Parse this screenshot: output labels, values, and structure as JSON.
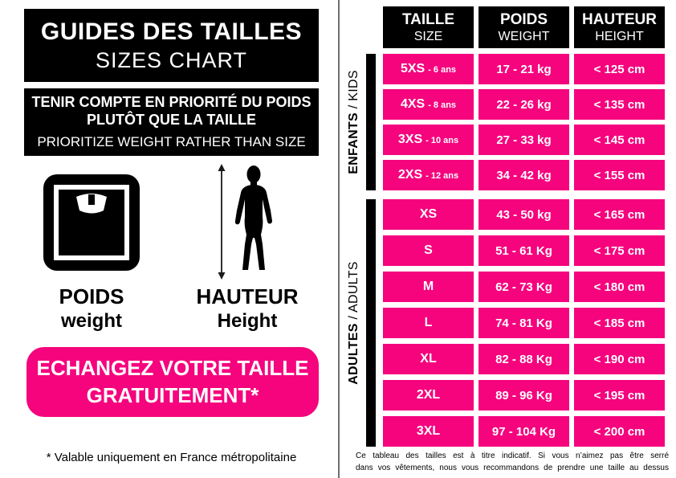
{
  "left_panel": {
    "title": {
      "fr": "GUIDES DES TAILLES",
      "en": "SIZES CHART"
    },
    "notice": {
      "fr_line1": "TENIR COMPTE EN PRIORITÉ DU POIDS",
      "fr_line2": "PLUTÔT QUE LA TAILLE",
      "en": "PRIORITIZE WEIGHT RATHER THAN SIZE"
    },
    "weight_icon_label": {
      "fr": "POIDS",
      "en": "weight"
    },
    "height_icon_label": {
      "fr": "HAUTEUR",
      "en": "Height"
    },
    "exchange_banner": {
      "line1": "ECHANGEZ VOTRE TAILLE",
      "line2": "GRATUITEMENT*"
    },
    "footnote": "* Valable uniquement en France métropolitaine"
  },
  "table": {
    "headers": [
      {
        "fr": "TAILLE",
        "en": "SIZE"
      },
      {
        "fr": "POIDS",
        "en": "WEIGHT"
      },
      {
        "fr": "HAUTEUR",
        "en": "HEIGHT"
      }
    ],
    "groups": [
      {
        "label_fr": "ENFANTS",
        "sep": "/",
        "label_en": "KIDS",
        "rows": [
          {
            "size": "5XS",
            "age": "- 6 ans",
            "weight": "17 - 21 kg",
            "height": "< 125 cm"
          },
          {
            "size": "4XS",
            "age": "- 8 ans",
            "weight": "22 - 26 kg",
            "height": "< 135 cm"
          },
          {
            "size": "3XS",
            "age": "- 10 ans",
            "weight": "27 - 33 kg",
            "height": "< 145 cm"
          },
          {
            "size": "2XS",
            "age": "- 12 ans",
            "weight": "34 - 42 kg",
            "height": "< 155 cm"
          }
        ]
      },
      {
        "label_fr": "ADULTES",
        "sep": "/",
        "label_en": "ADULTS",
        "rows": [
          {
            "size": "XS",
            "age": "",
            "weight": "43 - 50 kg",
            "height": "< 165 cm"
          },
          {
            "size": "S",
            "age": "",
            "weight": "51 - 61 Kg",
            "height": "< 175 cm"
          },
          {
            "size": "M",
            "age": "",
            "weight": "62 - 73 Kg",
            "height": "< 180 cm"
          },
          {
            "size": "L",
            "age": "",
            "weight": "74 - 81 Kg",
            "height": "< 185 cm"
          },
          {
            "size": "XL",
            "age": "",
            "weight": "82 - 88 Kg",
            "height": "< 190 cm"
          },
          {
            "size": "2XL",
            "age": "",
            "weight": "89 - 96 Kg",
            "height": "< 195 cm"
          },
          {
            "size": "3XL",
            "age": "",
            "weight": "97 - 104 Kg",
            "height": "< 200 cm"
          }
        ]
      }
    ]
  },
  "disclaimer": {
    "lines": [
      "Ce tableau des tailles est à titre indicatif. Si vous n’aimez pas être serré",
      "dans vos vêtements, nous vous recommandons de prendre une taille au dessus"
    ]
  },
  "colors": {
    "pink": "#F5047E",
    "black": "#000000",
    "divider_gray": "#6F6F6F"
  }
}
